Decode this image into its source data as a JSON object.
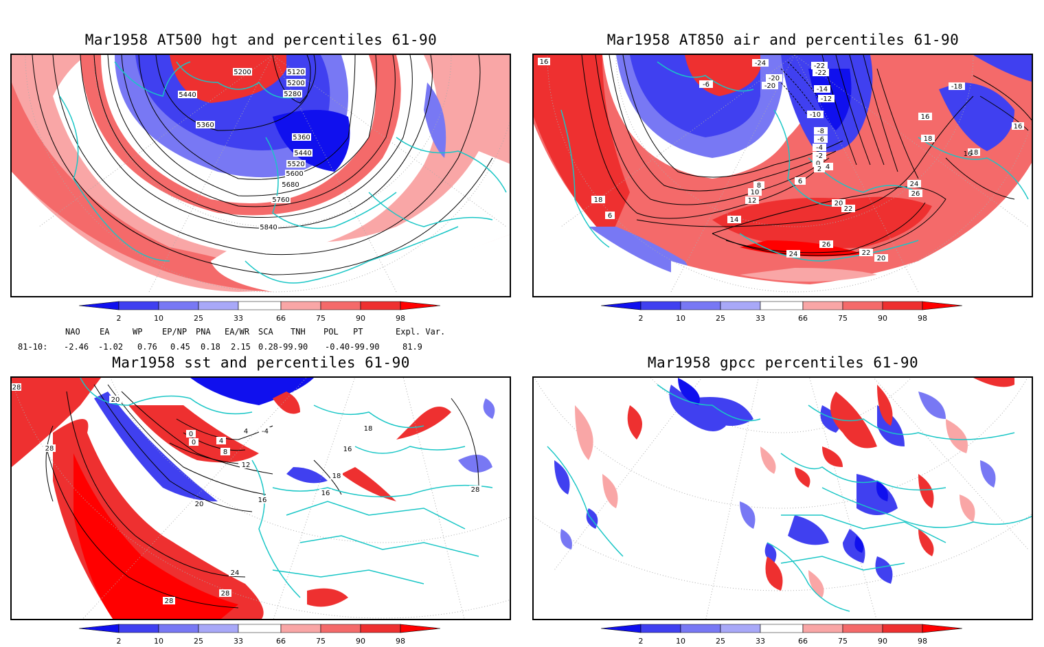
{
  "panels": [
    {
      "id": "p1",
      "title": "Mar1958 AT500 hgt and percentiles 61-90",
      "contour_labels": [
        "5120",
        "5200",
        "5200",
        "5280",
        "5440",
        "5360",
        "5360",
        "5440",
        "5520",
        "5600",
        "5680",
        "5760",
        "5840"
      ]
    },
    {
      "id": "p2",
      "title": "Mar1958 AT850 air and percentiles 61-90",
      "contour_labels": [
        "16",
        "-24",
        "-22",
        "-20",
        "-6",
        "-20",
        "-14",
        "-12",
        "-10",
        "-8",
        "-6",
        "-4",
        "-2",
        "0",
        "2",
        "4",
        "6",
        "8",
        "10",
        "12",
        "14",
        "16",
        "18",
        "18",
        "20",
        "20",
        "22",
        "22",
        "24",
        "24",
        "26",
        "26",
        "16",
        "18",
        "16",
        "-22",
        "-18",
        "6"
      ]
    },
    {
      "id": "p3",
      "title": "Mar1958 sst and percentiles 61-90",
      "contour_labels": [
        "28",
        "28",
        "20",
        "20",
        "16",
        "12",
        "8",
        "4",
        "0",
        "0",
        "4",
        "-4",
        "18",
        "18",
        "16",
        "16",
        "24",
        "28",
        "28",
        "28"
      ]
    },
    {
      "id": "p4",
      "title": "Mar1958 gpcc percentiles 61-90",
      "contour_labels": []
    }
  ],
  "colorbar": {
    "labels": [
      "2",
      "10",
      "25",
      "33",
      "66",
      "75",
      "90",
      "98"
    ],
    "colors": {
      "c1": "#1010ee",
      "c2": "#4040f0",
      "c3": "#7878f4",
      "c4": "#a8a8f8",
      "w": "#ffffff",
      "r4": "#f9a6a6",
      "r3": "#f46a6a",
      "r2": "#ee3030",
      "r1": "#ff0000"
    }
  },
  "indices": {
    "headers": [
      "NAO",
      "EA",
      "WP",
      "EP/NP",
      "PNA",
      "EA/WR",
      "SCA",
      "TNH",
      "POL",
      "PT",
      "Expl. Var."
    ],
    "row_label": "81-10:",
    "values": [
      "-2.46",
      "-1.02",
      "0.76",
      "0.45",
      "0.18",
      "2.15",
      "0.28-99.90",
      "-0.40-99.90",
      "81.9"
    ]
  },
  "map_colors": {
    "coast": "#19c6c6",
    "contour": "#000000",
    "grid": "#aaaaaa"
  }
}
